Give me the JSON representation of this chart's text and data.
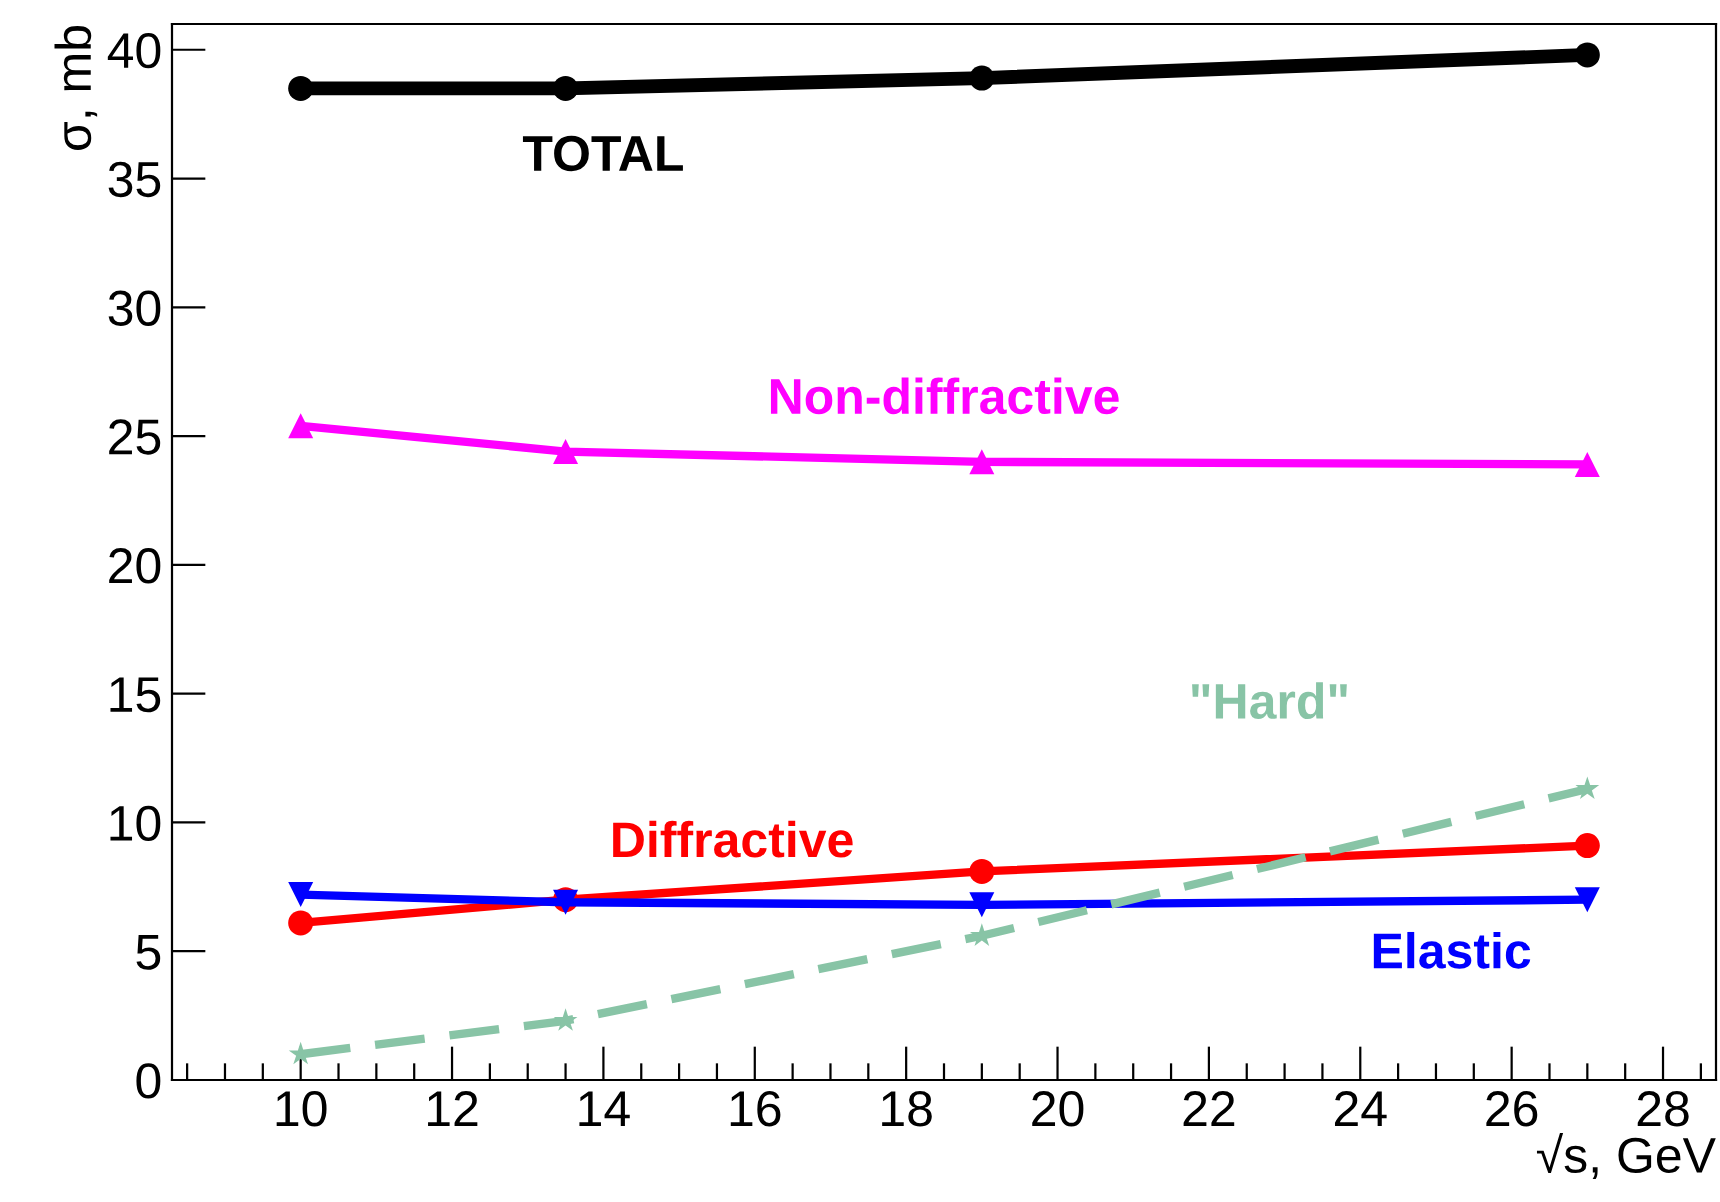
{
  "chart_data": {
    "type": "line",
    "xlabel": "√s, GeV",
    "ylabel": "σ, mb",
    "xlim": [
      8.3,
      28.7
    ],
    "ylim": [
      0,
      41
    ],
    "xticks": [
      {
        "value": 8.5,
        "label": null
      },
      {
        "value": 9,
        "label": null
      },
      {
        "value": 9.5,
        "label": null
      },
      10,
      {
        "value": 10.5,
        "label": null
      },
      {
        "value": 11,
        "label": null
      },
      {
        "value": 11.5,
        "label": null
      },
      12,
      {
        "value": 12.5,
        "label": null
      },
      {
        "value": 13,
        "label": null
      },
      {
        "value": 13.5,
        "label": null
      },
      14,
      {
        "value": 14.5,
        "label": null
      },
      {
        "value": 15,
        "label": null
      },
      {
        "value": 15.5,
        "label": null
      },
      16,
      {
        "value": 16.5,
        "label": null
      },
      {
        "value": 17,
        "label": null
      },
      {
        "value": 17.5,
        "label": null
      },
      18,
      {
        "value": 18.5,
        "label": null
      },
      {
        "value": 19,
        "label": null
      },
      {
        "value": 19.5,
        "label": null
      },
      20,
      {
        "value": 20.5,
        "label": null
      },
      {
        "value": 21,
        "label": null
      },
      {
        "value": 21.5,
        "label": null
      },
      22,
      {
        "value": 22.5,
        "label": null
      },
      {
        "value": 23,
        "label": null
      },
      {
        "value": 23.5,
        "label": null
      },
      24,
      {
        "value": 24.5,
        "label": null
      },
      {
        "value": 25,
        "label": null
      },
      {
        "value": 25.5,
        "label": null
      },
      26,
      {
        "value": 26.5,
        "label": null
      },
      {
        "value": 27,
        "label": null
      },
      {
        "value": 27.5,
        "label": null
      },
      28,
      {
        "value": 28.5,
        "label": null
      }
    ],
    "yticks": [
      0,
      5,
      10,
      15,
      20,
      25,
      30,
      35,
      40
    ],
    "grid": false,
    "legend": false,
    "x": [
      10,
      13.5,
      19,
      27
    ],
    "series": [
      {
        "name": "TOTAL",
        "color": "#000000",
        "marker": "circle",
        "line_style": "solid",
        "values": [
          38.5,
          38.5,
          38.9,
          39.8
        ]
      },
      {
        "name": "Non-diffractive",
        "color": "#ff00ff",
        "marker": "triangle",
        "line_style": "solid",
        "values": [
          25.4,
          24.4,
          24.0,
          23.9
        ]
      },
      {
        "name": "Diffractive",
        "color": "#ff0000",
        "marker": "circle",
        "line_style": "solid",
        "values": [
          6.1,
          7.0,
          8.1,
          9.1
        ]
      },
      {
        "name": "Elastic",
        "color": "#0000ff",
        "marker": "triangle",
        "line_style": "solid",
        "values": [
          7.2,
          6.9,
          6.8,
          7.0
        ]
      },
      {
        "name": "\"Hard\"",
        "color": "#88c4a6",
        "marker": "star",
        "line_style": "dashed",
        "values": [
          1.0,
          2.3,
          5.6,
          11.3
        ]
      }
    ]
  }
}
